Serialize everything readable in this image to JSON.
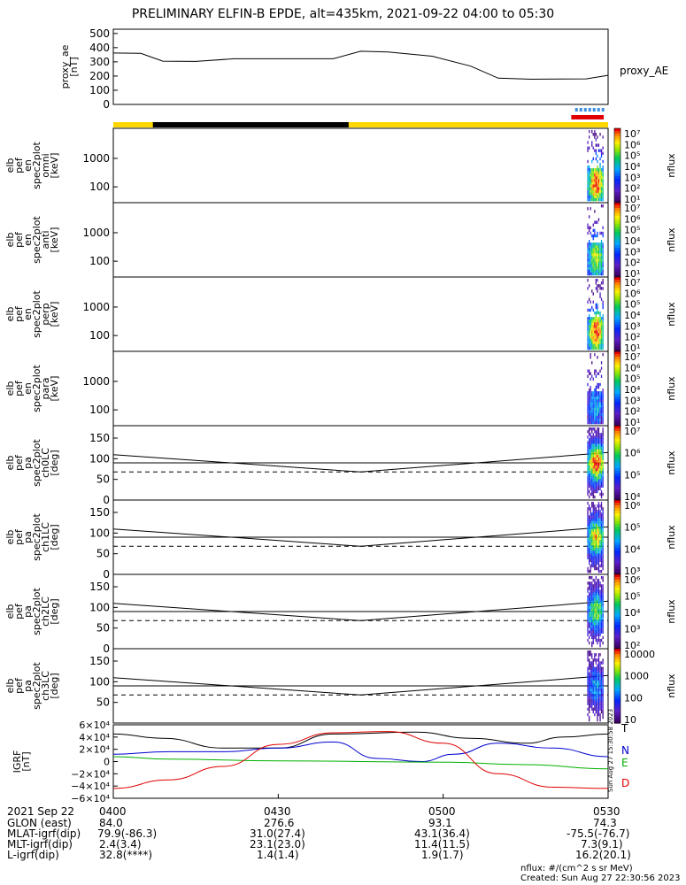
{
  "title": "PRELIMINARY ELFIN-B EPDE, alt=435km, 2021-09-22 04:00 to 05:30",
  "timestamp_vertical": "Sun Aug 27 15:30:58 2023",
  "colors": {
    "yellow_bar": "#ffd700",
    "black_bar": "#000000",
    "blue_marks": "#3a8fe0",
    "red_bar": "#e00000",
    "igrf_T": "#000000",
    "igrf_N": "#0000d0",
    "igrf_E": "#00b000",
    "igrf_D": "#e00000"
  },
  "chart_data": [
    {
      "id": "proxy_ae",
      "type": "line",
      "ylabel": [
        "proxy_ae",
        "[nT]"
      ],
      "yticks": [
        "500",
        "400",
        "300",
        "200",
        "100",
        "0"
      ],
      "ylim": [
        0,
        530
      ],
      "right_label": "proxy_AE",
      "x": [
        0,
        5,
        9,
        15,
        22,
        40,
        45,
        50,
        58,
        65,
        70,
        76,
        86,
        90
      ],
      "y": [
        362,
        360,
        305,
        303,
        322,
        322,
        375,
        370,
        340,
        270,
        185,
        178,
        180,
        205
      ]
    },
    {
      "id": "spec_omni",
      "type": "heatmap",
      "ylabel": [
        "elb",
        "pef",
        "en",
        "spec2plot",
        "omni",
        "[keV]"
      ],
      "yticks": [
        "1000",
        "100"
      ],
      "cb_ticks": [
        "10⁷",
        "10⁶",
        "10⁵",
        "10⁴",
        "10³",
        "10²",
        "10¹"
      ],
      "cb_label": "nflux",
      "active_window": [
        86.2,
        89.2
      ]
    },
    {
      "id": "spec_anti",
      "type": "heatmap",
      "ylabel": [
        "elb",
        "pef",
        "en",
        "spec2plot",
        "anti",
        "[keV]"
      ],
      "yticks": [
        "1000",
        "100"
      ],
      "cb_ticks": [
        "10⁷",
        "10⁶",
        "10⁵",
        "10⁴",
        "10³",
        "10²",
        "10¹"
      ],
      "cb_label": "nflux",
      "active_window": [
        86.2,
        89.2
      ]
    },
    {
      "id": "spec_perp",
      "type": "heatmap",
      "ylabel": [
        "elb",
        "pef",
        "en",
        "spec2plot",
        "perp",
        "[keV]"
      ],
      "yticks": [
        "1000",
        "100"
      ],
      "cb_ticks": [
        "10⁷",
        "10⁶",
        "10⁵",
        "10⁴",
        "10³",
        "10²",
        "10¹"
      ],
      "cb_label": "nflux",
      "active_window": [
        86.2,
        89.2
      ]
    },
    {
      "id": "spec_para",
      "type": "heatmap",
      "ylabel": [
        "elb",
        "pef",
        "en",
        "spec2plot",
        "para",
        "[keV]"
      ],
      "yticks": [
        "1000",
        "100"
      ],
      "cb_ticks": [
        "10⁷",
        "10⁶",
        "10⁵",
        "10⁴",
        "10³",
        "10²",
        "10¹"
      ],
      "cb_label": "nflux",
      "active_window": [
        86.2,
        89.2
      ]
    },
    {
      "id": "pa_ch0",
      "type": "heatmap",
      "ylabel": [
        "elb",
        "pef",
        "pa",
        "spec2plot",
        "ch0LC",
        "[deg]"
      ],
      "yticks": [
        "150",
        "100",
        "50",
        "0"
      ],
      "cb_ticks": [
        "10⁷",
        "10⁶",
        "10⁵",
        "10⁴"
      ],
      "cb_label": "nflux",
      "active_window": [
        86.2,
        89.2
      ]
    },
    {
      "id": "pa_ch1",
      "type": "heatmap",
      "ylabel": [
        "elb",
        "pef",
        "pa",
        "spec2plot",
        "ch1LC",
        "[deg]"
      ],
      "yticks": [
        "150",
        "100",
        "50",
        "0"
      ],
      "cb_ticks": [
        "10⁶",
        "10⁵",
        "10⁴",
        "10³"
      ],
      "cb_label": "nflux",
      "active_window": [
        86.2,
        89.2
      ]
    },
    {
      "id": "pa_ch2",
      "type": "heatmap",
      "ylabel": [
        "elb",
        "pef",
        "pa",
        "spec2plot",
        "ch2LC",
        "[deg]"
      ],
      "yticks": [
        "150",
        "100",
        "50",
        "0"
      ],
      "cb_ticks": [
        "10⁶",
        "10⁵",
        "10⁴",
        "10³",
        "10²"
      ],
      "cb_label": "nflux",
      "active_window": [
        86.2,
        89.2
      ]
    },
    {
      "id": "pa_ch3",
      "type": "heatmap",
      "ylabel": [
        "elb",
        "pef",
        "pa",
        "spec2plot",
        "ch3LC",
        "[deg]"
      ],
      "yticks": [
        "150",
        "100",
        "50"
      ],
      "cb_ticks": [
        "10000",
        "1000",
        "100",
        "10"
      ],
      "cb_label": "nflux",
      "active_window": [
        86.2,
        89.2
      ]
    },
    {
      "id": "igrf",
      "type": "line",
      "ylabel": [
        "IGRF",
        "[nT]"
      ],
      "yticks": [
        "6×10⁴",
        "4×10⁴",
        "2×10⁴",
        "0",
        "−2×10⁴",
        "−4×10⁴",
        "−6×10⁴"
      ],
      "ylim": [
        -60000,
        60000
      ],
      "series": [
        {
          "name": "T",
          "x": [
            0,
            9,
            20,
            30,
            40,
            55,
            65,
            75,
            82,
            90
          ],
          "y": [
            45000,
            38000,
            22000,
            22000,
            45000,
            48000,
            38000,
            30000,
            40000,
            45000
          ]
        },
        {
          "name": "N",
          "x": [
            0,
            10,
            20,
            30,
            40,
            48,
            56,
            62,
            70,
            80,
            90
          ],
          "y": [
            12000,
            16000,
            16000,
            22000,
            32000,
            5000,
            0,
            12000,
            30000,
            22000,
            8000
          ]
        },
        {
          "name": "E",
          "x": [
            0,
            10,
            30,
            60,
            75,
            90
          ],
          "y": [
            8000,
            4000,
            1000,
            -1000,
            -5000,
            -12000
          ]
        },
        {
          "name": "D",
          "x": [
            0,
            10,
            20,
            30,
            40,
            50,
            60,
            70,
            80,
            90
          ],
          "y": [
            -44000,
            -30000,
            -8000,
            28000,
            47000,
            49000,
            30000,
            -20000,
            -42000,
            -44000
          ]
        }
      ]
    }
  ],
  "footer": {
    "xtick_labels": [
      "0400",
      "0430",
      "0500",
      "0530"
    ],
    "row_labels": [
      "2021 Sep 22",
      "GLON (east)",
      "MLAT-igrf(dip)",
      "MLT-igrf(dip)",
      "L-igrf(dip)"
    ],
    "glon": [
      "84.0",
      "276.6",
      "93.1",
      "74.3"
    ],
    "mlat": [
      "79.9(-86.3)",
      "31.0(27.4)",
      "43.1(36.4)",
      "-75.5(-76.7)"
    ],
    "mlt": [
      "2.4(3.4)",
      "23.1(23.0)",
      "11.4(11.5)",
      "7.3(9.1)"
    ],
    "lval": [
      "32.8(****)",
      "1.4(1.4)",
      "1.9(1.7)",
      "16.2(20.1)"
    ],
    "nflux_units": "nflux: #/(cm^2 s sr MeV)",
    "created": "Created: Sun Aug 27 22:30:56 2023"
  }
}
